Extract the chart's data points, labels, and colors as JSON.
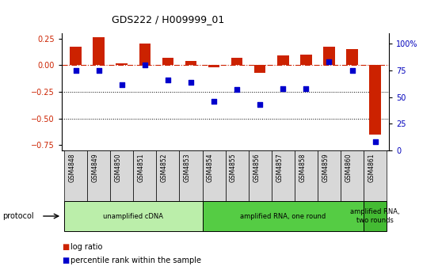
{
  "title": "GDS222 / H009999_01",
  "samples": [
    "GSM4848",
    "GSM4849",
    "GSM4850",
    "GSM4851",
    "GSM4852",
    "GSM4853",
    "GSM4854",
    "GSM4855",
    "GSM4856",
    "GSM4857",
    "GSM4858",
    "GSM4859",
    "GSM4860",
    "GSM4861"
  ],
  "log_ratio": [
    0.17,
    0.26,
    0.02,
    0.2,
    0.07,
    0.04,
    -0.02,
    0.07,
    -0.07,
    0.09,
    0.1,
    0.17,
    0.15,
    -0.65
  ],
  "percentile_rank": [
    75,
    75,
    62,
    80,
    66,
    64,
    46,
    57,
    43,
    58,
    58,
    83,
    75,
    8
  ],
  "ylim_left": [
    -0.8,
    0.3
  ],
  "ylim_right": [
    0,
    110
  ],
  "yticks_left": [
    0.25,
    0.0,
    -0.25,
    -0.5,
    -0.75
  ],
  "yticks_right": [
    100,
    75,
    50,
    25,
    0
  ],
  "right_tick_labels": [
    "100%",
    "75",
    "50",
    "25",
    "0"
  ],
  "bar_color": "#cc2200",
  "dot_color": "#0000cc",
  "zero_line_color": "#cc2200",
  "protocol_groups": [
    {
      "label": "unamplified cDNA",
      "start": 0,
      "end": 6,
      "color": "#bbeeaa"
    },
    {
      "label": "amplified RNA, one round",
      "start": 6,
      "end": 13,
      "color": "#55cc44"
    },
    {
      "label": "amplified RNA,\ntwo rounds",
      "start": 13,
      "end": 14,
      "color": "#44bb33"
    }
  ],
  "legend_items": [
    {
      "label": "log ratio",
      "color": "#cc2200"
    },
    {
      "label": "percentile rank within the sample",
      "color": "#0000cc"
    }
  ],
  "protocol_label": "protocol",
  "background_color": "#ffffff",
  "tick_label_color_left": "#cc2200",
  "tick_label_color_right": "#0000bb",
  "sample_box_color": "#d8d8d8"
}
